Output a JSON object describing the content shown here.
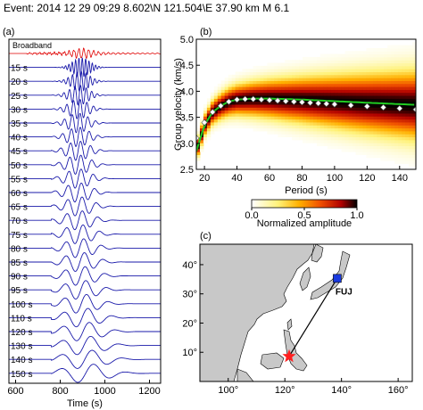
{
  "header": {
    "event_text": "Event: 2014 12 29 09:29   8.602\\N  121.504\\E   37.90 km   M 6.1"
  },
  "chart_data": [
    {
      "type": "line",
      "panel_label": "(a)",
      "title": "",
      "xlabel": "Time (s)",
      "ylabel": "",
      "xlim": [
        570,
        1250
      ],
      "xticks": [
        600,
        800,
        1000,
        1200
      ],
      "traces": [
        {
          "name": "Broadband",
          "color": "#e00000",
          "onset": 650,
          "center": 900,
          "period": 22,
          "amp": 0.45
        },
        {
          "name": "15 s",
          "color": "#1a1aaa",
          "onset": 740,
          "center": 895,
          "period": 15,
          "amp": 1.0
        },
        {
          "name": "20 s",
          "color": "#1a1aaa",
          "onset": 750,
          "center": 890,
          "period": 20,
          "amp": 1.0
        },
        {
          "name": "25 s",
          "color": "#1a1aaa",
          "onset": 760,
          "center": 885,
          "period": 25,
          "amp": 1.0
        },
        {
          "name": "30 s",
          "color": "#1a1aaa",
          "onset": 760,
          "center": 882,
          "period": 30,
          "amp": 1.0
        },
        {
          "name": "35 s",
          "color": "#1a1aaa",
          "onset": 760,
          "center": 880,
          "period": 35,
          "amp": 1.0
        },
        {
          "name": "40 s",
          "color": "#1a1aaa",
          "onset": 760,
          "center": 880,
          "period": 40,
          "amp": 1.0
        },
        {
          "name": "45 s",
          "color": "#1a1aaa",
          "onset": 760,
          "center": 880,
          "period": 45,
          "amp": 1.0
        },
        {
          "name": "50 s",
          "color": "#1a1aaa",
          "onset": 760,
          "center": 880,
          "period": 50,
          "amp": 1.0
        },
        {
          "name": "55 s",
          "color": "#1a1aaa",
          "onset": 760,
          "center": 880,
          "period": 55,
          "amp": 1.0
        },
        {
          "name": "60 s",
          "color": "#1a1aaa",
          "onset": 760,
          "center": 880,
          "period": 60,
          "amp": 1.0
        },
        {
          "name": "65 s",
          "color": "#1a1aaa",
          "onset": 760,
          "center": 882,
          "period": 65,
          "amp": 1.0
        },
        {
          "name": "70 s",
          "color": "#1a1aaa",
          "onset": 760,
          "center": 882,
          "period": 70,
          "amp": 1.0
        },
        {
          "name": "75 s",
          "color": "#1a1aaa",
          "onset": 760,
          "center": 884,
          "period": 75,
          "amp": 1.0
        },
        {
          "name": "80 s",
          "color": "#1a1aaa",
          "onset": 760,
          "center": 886,
          "period": 80,
          "amp": 1.0
        },
        {
          "name": "85 s",
          "color": "#1a1aaa",
          "onset": 760,
          "center": 888,
          "period": 85,
          "amp": 1.0
        },
        {
          "name": "90 s",
          "color": "#1a1aaa",
          "onset": 760,
          "center": 890,
          "period": 90,
          "amp": 1.0
        },
        {
          "name": "95 s",
          "color": "#1a1aaa",
          "onset": 760,
          "center": 892,
          "period": 95,
          "amp": 1.0
        },
        {
          "name": "100 s",
          "color": "#1a1aaa",
          "onset": 760,
          "center": 894,
          "period": 100,
          "amp": 1.0
        },
        {
          "name": "110 s",
          "color": "#1a1aaa",
          "onset": 760,
          "center": 898,
          "period": 110,
          "amp": 1.0
        },
        {
          "name": "120 s",
          "color": "#1a1aaa",
          "onset": 760,
          "center": 902,
          "period": 120,
          "amp": 1.0
        },
        {
          "name": "130 s",
          "color": "#1a1aaa",
          "onset": 760,
          "center": 906,
          "period": 130,
          "amp": 1.0
        },
        {
          "name": "140 s",
          "color": "#1a1aaa",
          "onset": 760,
          "center": 910,
          "period": 140,
          "amp": 1.0
        },
        {
          "name": "150 s",
          "color": "#1a1aaa",
          "onset": 760,
          "center": 914,
          "period": 150,
          "amp": 1.0
        }
      ]
    },
    {
      "type": "heatmap",
      "panel_label": "(b)",
      "title": "",
      "xlabel": "Period (s)",
      "ylabel": "Group velocity (km/s)",
      "xlim": [
        15,
        150
      ],
      "ylim": [
        2.5,
        5.0
      ],
      "xticks": [
        20,
        40,
        60,
        80,
        100,
        120,
        140
      ],
      "yticks": [
        2.5,
        3.0,
        3.5,
        4.0,
        4.5,
        5.0
      ],
      "colorbar": {
        "label": "Normalized amplitude",
        "ticks": [
          0.0,
          0.5,
          1.0
        ],
        "colors": [
          "#ffffff",
          "#fff27a",
          "#ffb000",
          "#f05000",
          "#b00000",
          "#000000"
        ]
      },
      "measured_points": {
        "period": [
          15,
          20,
          25,
          30,
          35,
          40,
          45,
          50,
          55,
          60,
          65,
          70,
          75,
          80,
          85,
          90,
          95,
          100,
          110,
          120,
          130,
          140,
          150
        ],
        "velocity": [
          3.1,
          3.4,
          3.6,
          3.72,
          3.8,
          3.84,
          3.85,
          3.85,
          3.84,
          3.83,
          3.82,
          3.81,
          3.8,
          3.79,
          3.78,
          3.77,
          3.76,
          3.75,
          3.73,
          3.71,
          3.69,
          3.67,
          3.65
        ]
      },
      "reference_curve": {
        "color": "#22cc22",
        "period": [
          15,
          20,
          25,
          30,
          35,
          40,
          50,
          60,
          80,
          100,
          120,
          150
        ],
        "velocity": [
          2.85,
          3.35,
          3.6,
          3.72,
          3.8,
          3.84,
          3.86,
          3.86,
          3.84,
          3.81,
          3.78,
          3.74
        ]
      }
    },
    {
      "type": "map",
      "panel_label": "(c)",
      "title": "",
      "xlim": [
        90,
        165
      ],
      "ylim": [
        0,
        47
      ],
      "xticks": [
        100,
        120,
        140,
        160
      ],
      "yticks": [
        10,
        20,
        30,
        40
      ],
      "xtick_labels": [
        "100°",
        "120°",
        "140°",
        "160°"
      ],
      "ytick_labels": [
        "10°",
        "20°",
        "30°",
        "40°"
      ],
      "event": {
        "lon": 121.5,
        "lat": 8.6,
        "color": "#ff2020"
      },
      "station": {
        "name": "FUJ",
        "lon": 138.5,
        "lat": 35.3,
        "color": "#1a3adf"
      },
      "land_color": "#c8c8c8"
    }
  ]
}
